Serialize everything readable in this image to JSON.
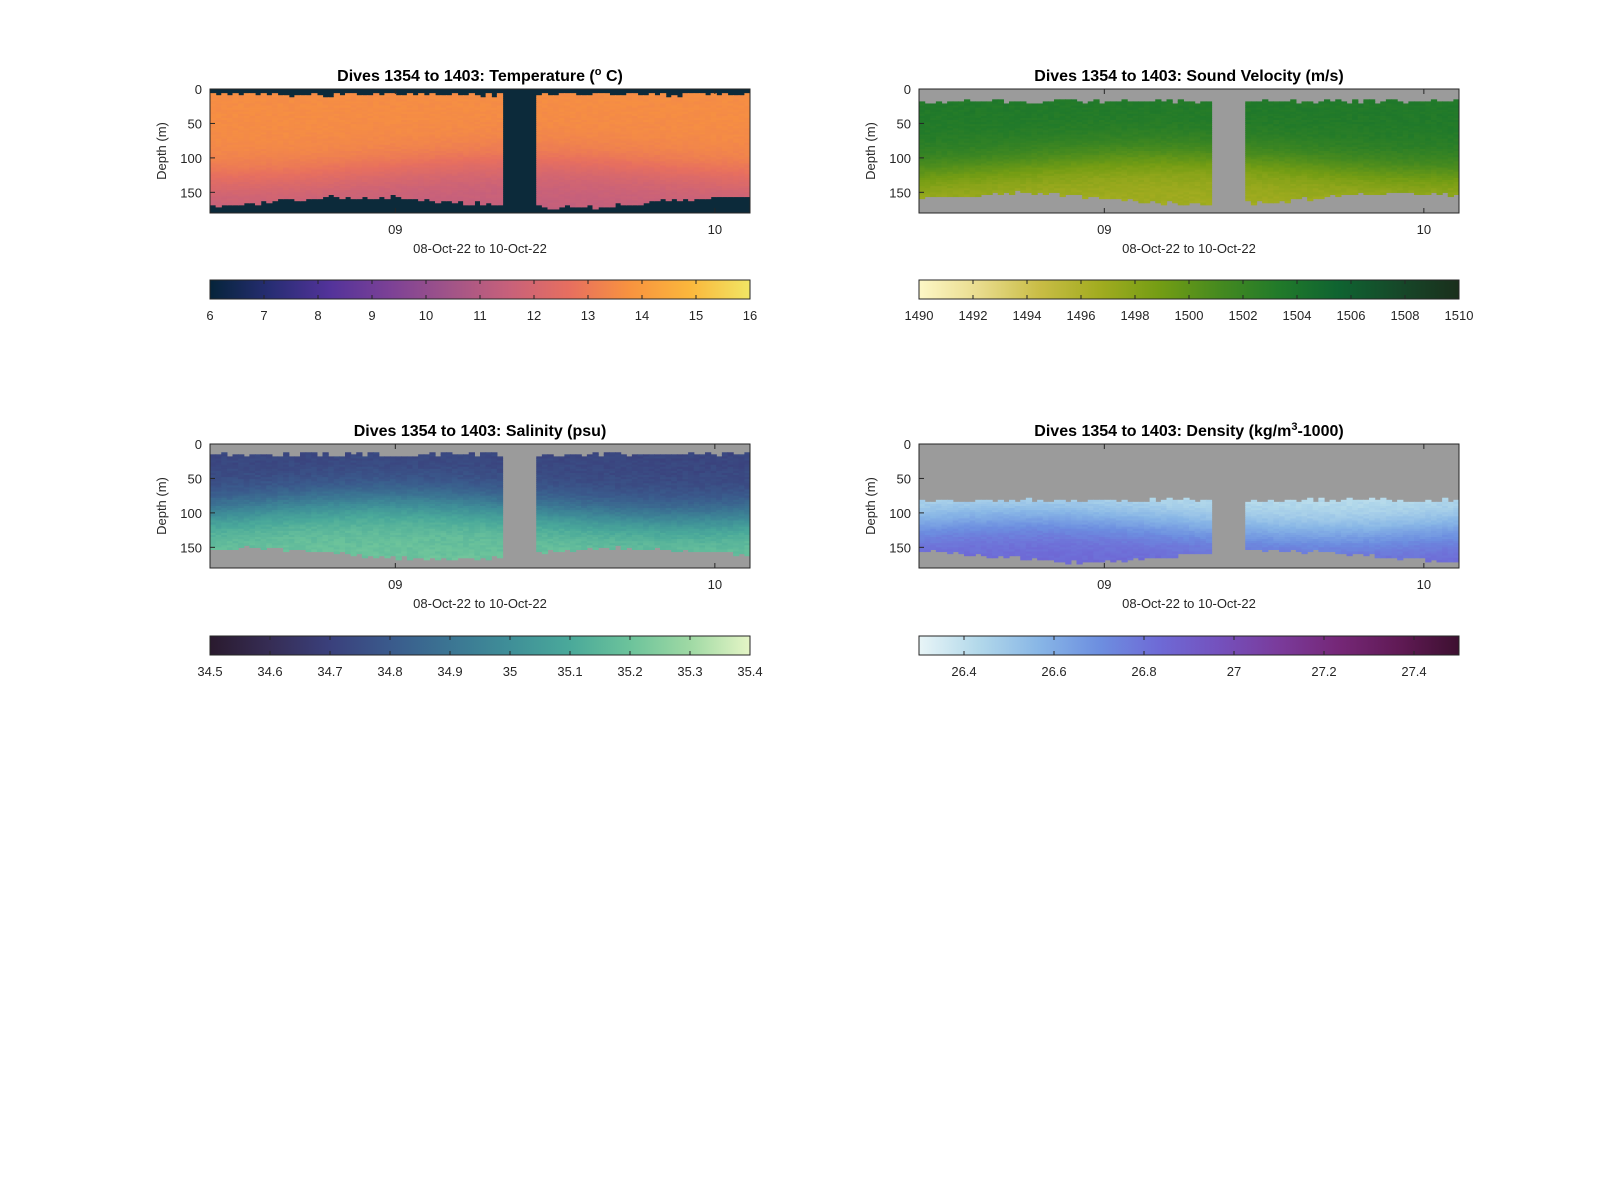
{
  "chart_data": [
    {
      "type": "heatmap",
      "title": "Dives 1354 to 1403: Temperature (° C)",
      "title_parts": {
        "prefix": "Dives 1354 to 1403: Temperature (",
        "sup": "o",
        "suffix": " C)"
      },
      "xlabel": "08-Oct-22 to 10-Oct-22",
      "ylabel": "Depth (m)",
      "x_ticks": [
        "09",
        "10"
      ],
      "x_tick_days": [
        1,
        2
      ],
      "xlim_days": [
        0.42,
        2.11
      ],
      "y_ticks": [
        0,
        50,
        100,
        150
      ],
      "ylim": [
        0,
        180
      ],
      "gap_days": [
        1.33,
        1.44
      ],
      "background_color": "#0c2a3a",
      "colorbar": {
        "range": [
          6,
          16
        ],
        "ticks": [
          "6",
          "7",
          "8",
          "9",
          "10",
          "11",
          "12",
          "13",
          "14",
          "15",
          "16"
        ],
        "colors": [
          "#05243a",
          "#272d73",
          "#53339a",
          "#7c4196",
          "#a15488",
          "#c8617a",
          "#e76f5f",
          "#f8933f",
          "#fbb73c",
          "#f1e664"
        ]
      },
      "surface_value": 13.6,
      "deep_value": 11.4,
      "thermocline_depth": 120,
      "sample_top_depth": 8,
      "sample_bottom_depth": 170
    },
    {
      "type": "heatmap",
      "title": "Dives 1354 to 1403: Sound Velocity (m/s)",
      "title_parts": {
        "prefix": "Dives 1354 to 1403: Sound Velocity (m/s)",
        "sup": "",
        "suffix": ""
      },
      "xlabel": "08-Oct-22 to 10-Oct-22",
      "ylabel": "Depth (m)",
      "x_ticks": [
        "09",
        "10"
      ],
      "x_tick_days": [
        1,
        2
      ],
      "xlim_days": [
        0.42,
        2.11
      ],
      "y_ticks": [
        0,
        50,
        100,
        150
      ],
      "ylim": [
        0,
        180
      ],
      "gap_days": [
        1.33,
        1.44
      ],
      "background_color": "#9b9b9b",
      "colorbar": {
        "range": [
          1490,
          1510
        ],
        "ticks": [
          "1490",
          "1492",
          "1494",
          "1496",
          "1498",
          "1500",
          "1502",
          "1504",
          "1506",
          "1508",
          "1510"
        ],
        "colors": [
          "#fdf7c6",
          "#e9dc8d",
          "#c9bd46",
          "#a2ac20",
          "#749d14",
          "#468a1f",
          "#217a2a",
          "#0f6331",
          "#164829",
          "#1a2f1c"
        ]
      },
      "surface_value": 1503.4,
      "deep_value": 1496.6,
      "thermocline_depth": 110,
      "sample_top_depth": 18,
      "sample_bottom_depth": 165
    },
    {
      "type": "heatmap",
      "title": "Dives 1354 to 1403: Salinity (psu)",
      "title_parts": {
        "prefix": "Dives 1354 to 1403: Salinity (psu)",
        "sup": "",
        "suffix": ""
      },
      "xlabel": "08-Oct-22 to 10-Oct-22",
      "ylabel": "Depth (m)",
      "x_ticks": [
        "09",
        "10"
      ],
      "x_tick_days": [
        1,
        2
      ],
      "xlim_days": [
        0.42,
        2.11
      ],
      "y_ticks": [
        0,
        50,
        100,
        150
      ],
      "ylim": [
        0,
        180
      ],
      "gap_days": [
        1.33,
        1.44
      ],
      "background_color": "#9b9b9b",
      "colorbar": {
        "range": [
          34.5,
          35.4
        ],
        "ticks": [
          "34.5",
          "34.6",
          "34.7",
          "34.8",
          "34.9",
          "35",
          "35.1",
          "35.2",
          "35.3",
          "35.4"
        ],
        "colors": [
          "#2a1a2e",
          "#362d55",
          "#3a407c",
          "#3a5a8c",
          "#3b7593",
          "#3f8f98",
          "#4aa99a",
          "#6cc39b",
          "#9fd9a4",
          "#e5f5c6"
        ]
      },
      "surface_value": 34.72,
      "deep_value": 35.2,
      "thermocline_depth": 95,
      "sample_top_depth": 15,
      "sample_bottom_depth": 165
    },
    {
      "type": "heatmap",
      "title": "Dives 1354 to 1403: Density (kg/m³-1000)",
      "title_parts": {
        "prefix": "Dives 1354 to 1403: Density (kg/m",
        "sup": "3",
        "suffix": "-1000)"
      },
      "xlabel": "08-Oct-22 to 10-Oct-22",
      "ylabel": "Depth (m)",
      "x_ticks": [
        "09",
        "10"
      ],
      "x_tick_days": [
        1,
        2
      ],
      "xlim_days": [
        0.42,
        2.11
      ],
      "y_ticks": [
        0,
        50,
        100,
        150
      ],
      "ylim": [
        0,
        180
      ],
      "gap_days": [
        1.33,
        1.44
      ],
      "background_color": "#9b9b9b",
      "colorbar": {
        "range": [
          26.3,
          27.5
        ],
        "ticks": [
          "26.4",
          "26.6",
          "26.8",
          "27",
          "27.2",
          "27.4"
        ],
        "tick_values": [
          26.4,
          26.6,
          26.8,
          27.0,
          27.2,
          27.4
        ],
        "colors": [
          "#e8f5f7",
          "#b2d8ea",
          "#88b6e6",
          "#6d8fe0",
          "#6e6ad6",
          "#7451bd",
          "#7a3b9b",
          "#752777",
          "#601a55",
          "#3d1030"
        ]
      },
      "surface_value": 26.4,
      "deep_value": 26.85,
      "thermocline_depth": 120,
      "sample_top_depth": 82,
      "sample_bottom_depth": 168
    }
  ]
}
